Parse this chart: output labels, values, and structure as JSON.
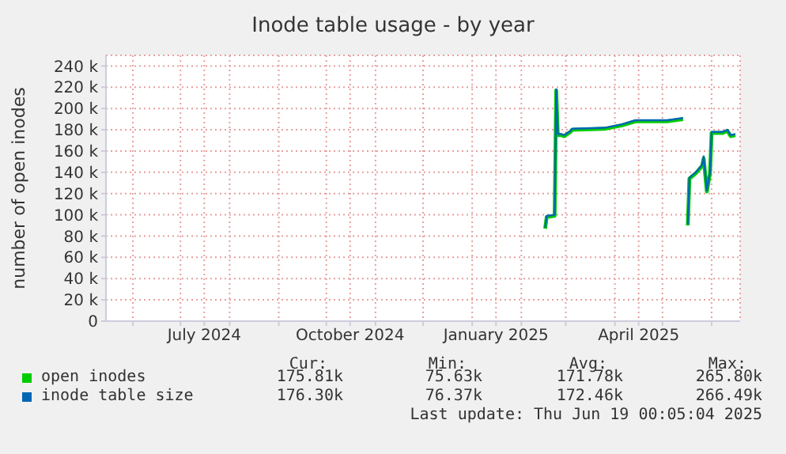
{
  "chart_data": {
    "type": "line",
    "title": "Inode table usage - by year",
    "ylabel": "number of open inodes",
    "x": [
      "2025-02-16",
      "2025-02-17",
      "2025-02-22",
      "2025-02-23",
      "2025-02-24",
      "2025-02-26",
      "2025-02-28",
      "2025-03-04",
      "2025-03-05",
      "2025-03-26",
      "2025-04-05",
      "2025-04-14",
      "2025-05-04",
      "2025-05-14",
      "2025-05-15",
      "2025-05-17",
      "2025-05-18",
      "2025-05-22",
      "2025-05-26",
      "2025-05-27",
      "2025-05-29",
      "2025-05-31",
      "2025-06-01",
      "2025-06-08",
      "2025-06-11",
      "2025-06-13",
      "2025-06-16"
    ],
    "series": [
      {
        "name": "open inodes",
        "color": "#00cc00",
        "values": [
          87000,
          98000,
          99000,
          217000,
          175000,
          175000,
          174000,
          178000,
          180000,
          181000,
          184000,
          188000,
          188000,
          190000,
          null,
          90000,
          134000,
          139000,
          146000,
          153000,
          122000,
          139000,
          177000,
          177000,
          179000,
          174000,
          175000
        ]
      },
      {
        "name": "inode table size",
        "color": "#0066b3",
        "values": [
          88000,
          99000,
          100000,
          218000,
          176000,
          176000,
          175000,
          179000,
          181000,
          182000,
          185000,
          189000,
          189000,
          191000,
          null,
          91000,
          135000,
          140000,
          147000,
          155000,
          123000,
          140000,
          178000,
          178000,
          180000,
          175000,
          176000
        ]
      }
    ],
    "xlim": [
      "2024-05-15",
      "2025-06-19"
    ],
    "xticks": [
      {
        "value": "2024-06-01",
        "label": null
      },
      {
        "value": "2024-07-01",
        "label": null
      },
      {
        "value": "2024-07-16",
        "label": "July 2024"
      },
      {
        "value": "2024-08-01",
        "label": null
      },
      {
        "value": "2024-09-01",
        "label": null
      },
      {
        "value": "2024-10-01",
        "label": null
      },
      {
        "value": "2024-10-16",
        "label": "October 2024"
      },
      {
        "value": "2024-11-01",
        "label": null
      },
      {
        "value": "2024-12-01",
        "label": null
      },
      {
        "value": "2025-01-01",
        "label": null
      },
      {
        "value": "2025-01-16",
        "label": "January 2025"
      },
      {
        "value": "2025-02-01",
        "label": null
      },
      {
        "value": "2025-03-01",
        "label": null
      },
      {
        "value": "2025-04-01",
        "label": null
      },
      {
        "value": "2025-04-16",
        "label": "April 2025"
      },
      {
        "value": "2025-05-01",
        "label": null
      },
      {
        "value": "2025-06-01",
        "label": null
      }
    ],
    "ylim": [
      0,
      250000
    ],
    "yticks": [
      0,
      {
        "value": 20000,
        "label": "20 k"
      },
      {
        "value": 40000,
        "label": "40 k"
      },
      {
        "value": 60000,
        "label": "60 k"
      },
      {
        "value": 80000,
        "label": "80 k"
      },
      {
        "value": 100000,
        "label": "100 k"
      },
      {
        "value": 120000,
        "label": "120 k"
      },
      {
        "value": 140000,
        "label": "140 k"
      },
      {
        "value": 160000,
        "label": "160 k"
      },
      {
        "value": 180000,
        "label": "180 k"
      },
      {
        "value": 200000,
        "label": "200 k"
      },
      {
        "value": 220000,
        "label": "220 k"
      },
      {
        "value": 240000,
        "label": "240 k"
      }
    ],
    "grid": true,
    "legend": "bottom",
    "marker": "none",
    "line_style": "solid",
    "annotations": [
      "Cur:",
      "Min:",
      "Avg:",
      "Max:",
      "175.81k",
      "75.63k",
      "171.78k",
      "265.80k",
      "176.30k",
      "76.37k",
      "172.46k",
      "266.49k",
      "Last update: Thu Jun 19 00:05:04 2025"
    ]
  }
}
